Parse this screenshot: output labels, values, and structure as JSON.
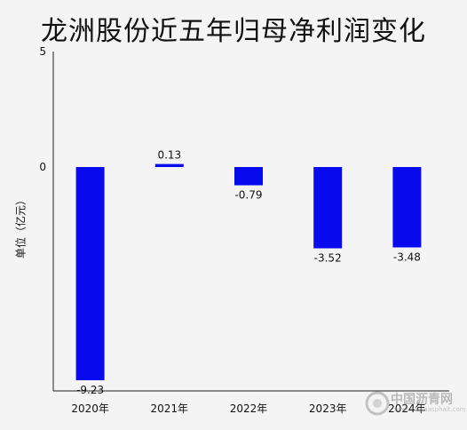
{
  "chart_data": {
    "type": "bar",
    "title": "龙洲股份近五年归母净利润变化",
    "ylabel": "单位（亿元）",
    "categories": [
      "2020年",
      "2021年",
      "2022年",
      "2023年",
      "2024年"
    ],
    "values": [
      -9.23,
      0.13,
      -0.79,
      -3.52,
      -3.48
    ],
    "value_labels": [
      "-9.23",
      "0.13",
      "-0.79",
      "-3.52",
      "-3.48"
    ],
    "yticks": [
      "5",
      "0"
    ],
    "ylim": [
      -9.4,
      5
    ],
    "bar_color": "#0a0aee",
    "grid": false
  },
  "watermark": {
    "text": "中国沥青网",
    "sub": "www.chinaasphalt.com"
  }
}
